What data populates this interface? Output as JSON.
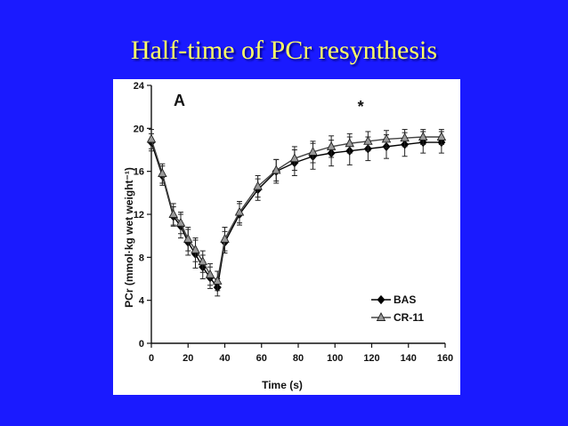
{
  "slide": {
    "title": "Half-time of PCr resynthesis",
    "background_color": "#1a1aff",
    "title_color": "#ffff66"
  },
  "chart_data": {
    "type": "line",
    "panel_label": "A",
    "title": "",
    "xlabel": "Time (s)",
    "ylabel": "PCr (mmol·kg wet weight⁻¹)",
    "xlim": [
      0,
      160
    ],
    "ylim": [
      0,
      24
    ],
    "x_ticks": [
      0,
      20,
      40,
      60,
      80,
      100,
      120,
      140,
      160
    ],
    "y_ticks": [
      0,
      4,
      8,
      12,
      16,
      20,
      24
    ],
    "annotation": {
      "text": "*",
      "x": 114,
      "y": 21.5
    },
    "legend": {
      "position": "bottom-right"
    },
    "series": [
      {
        "name": "BAS",
        "marker": "diamond",
        "color": "#000000",
        "x": [
          0,
          6,
          12,
          16,
          20,
          24,
          28,
          32,
          36,
          40,
          48,
          58,
          68,
          78,
          88,
          98,
          108,
          118,
          128,
          138,
          148,
          158
        ],
        "y": [
          18.7,
          15.6,
          11.8,
          10.9,
          9.4,
          8.3,
          7.1,
          6.1,
          5.2,
          9.4,
          12.0,
          14.3,
          16.0,
          16.8,
          17.4,
          17.7,
          17.9,
          18.1,
          18.3,
          18.5,
          18.7,
          18.7
        ],
        "err": [
          0.8,
          0.9,
          0.9,
          1.1,
          1.2,
          1.3,
          1.1,
          1.0,
          0.8,
          1.0,
          1.0,
          1.0,
          1.1,
          1.2,
          1.2,
          1.2,
          1.3,
          1.1,
          1.1,
          1.1,
          1.0,
          1.0
        ]
      },
      {
        "name": "CR-11",
        "marker": "triangle",
        "color": "#999999",
        "x": [
          0,
          6,
          12,
          16,
          20,
          24,
          28,
          32,
          36,
          40,
          48,
          58,
          68,
          78,
          88,
          98,
          108,
          118,
          128,
          138,
          148,
          158
        ],
        "y": [
          19.0,
          15.8,
          12.0,
          11.2,
          9.7,
          8.7,
          7.6,
          6.4,
          5.8,
          9.7,
          12.2,
          14.6,
          16.1,
          17.2,
          17.8,
          18.3,
          18.6,
          18.8,
          19.0,
          19.1,
          19.2,
          19.2
        ],
        "err": [
          0.9,
          0.9,
          1.0,
          1.0,
          1.1,
          1.1,
          1.0,
          1.0,
          0.9,
          1.1,
          1.0,
          1.0,
          1.0,
          1.1,
          1.0,
          1.0,
          0.9,
          0.9,
          0.8,
          0.8,
          0.7,
          0.7
        ]
      }
    ]
  }
}
